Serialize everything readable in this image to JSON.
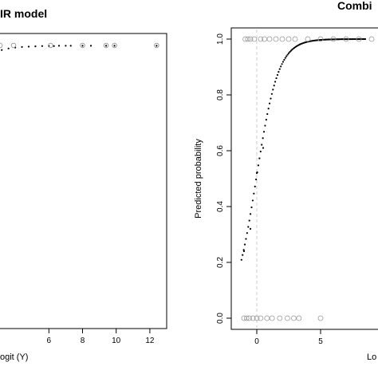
{
  "figure": {
    "panels": [
      {
        "title": "IR model",
        "xlabel": "ogit (Y)",
        "ylabel": "",
        "x_ticks": [
          "6",
          "8",
          "10",
          "12"
        ]
      },
      {
        "title": "Combi",
        "xlabel": "Lo",
        "ylabel": "Predicted probability",
        "x_ticks": [
          "0",
          "5",
          "10"
        ],
        "y_ticks": [
          "0.0",
          "0.2",
          "0.4",
          "0.6",
          "0.8",
          "1.0"
        ]
      }
    ]
  },
  "chart_data": [
    {
      "type": "scatter",
      "title": "IR model",
      "xlabel": "ogit (Y)",
      "ylabel": "",
      "xlim": [
        3.0,
        13.0
      ],
      "x_ticks": [
        6,
        8,
        10,
        12
      ],
      "grid": false,
      "series": [
        {
          "marker": "filled-dot",
          "color": "#000000",
          "x": [
            3.2,
            3.6,
            4.0,
            4.4,
            4.8,
            5.2,
            5.6,
            6.0,
            6.3,
            6.6,
            7.0,
            7.3,
            8.0,
            8.5,
            9.4,
            9.9,
            12.4
          ],
          "y": [
            0.985,
            0.99,
            0.993,
            0.995,
            0.996,
            0.997,
            0.998,
            0.998,
            0.998,
            0.999,
            0.999,
            0.999,
            0.999,
            0.999,
            0.999,
            0.999,
            0.999
          ]
        },
        {
          "marker": "open-circle",
          "color": "#888888",
          "x": [
            3.1,
            3.9,
            6.1,
            8.0,
            9.4,
            9.9,
            12.4
          ],
          "y": [
            1.0,
            1.0,
            1.0,
            1.0,
            1.0,
            1.0,
            1.0
          ]
        }
      ]
    },
    {
      "type": "scatter",
      "title": "Combi",
      "xlabel": "Lo",
      "ylabel": "Predicted probability",
      "xlim": [
        -2.0,
        10.5
      ],
      "ylim": [
        -0.04,
        1.04
      ],
      "x_ticks": [
        0,
        5,
        10
      ],
      "y_ticks": [
        0.0,
        0.2,
        0.4,
        0.6,
        0.8,
        1.0
      ],
      "grid": false,
      "reference_line": {
        "x": 0,
        "style": "dashed",
        "color": "#cccccc"
      },
      "series": [
        {
          "marker": "filled-dot",
          "color": "#000000",
          "curve": "logistic",
          "x_range": [
            -1.2,
            8.5
          ],
          "extra_points": [
            {
              "x": -1.0,
              "y": 0.24
            },
            {
              "x": -0.5,
              "y": 0.32
            },
            {
              "x": 0.0,
              "y": 0.52
            },
            {
              "x": 0.5,
              "y": 0.61
            }
          ]
        },
        {
          "marker": "open-circle",
          "color": "#999999",
          "x": [
            -0.9,
            -0.7,
            -0.5,
            -0.2,
            0.3,
            0.6,
            1.0,
            1.5,
            2.0,
            2.5,
            3.0,
            4.0,
            5.0,
            6.0,
            7.0,
            8.0,
            9.0
          ],
          "y": [
            1,
            1,
            1,
            1,
            1,
            1,
            1,
            1,
            1,
            1,
            1,
            1,
            1,
            1,
            1,
            1,
            1
          ]
        },
        {
          "marker": "open-circle",
          "color": "#999999",
          "x": [
            -1.0,
            -0.8,
            -0.6,
            -0.3,
            0.0,
            0.3,
            0.8,
            1.2,
            1.8,
            2.4,
            2.9,
            3.3,
            5.0
          ],
          "y": [
            0,
            0,
            0,
            0,
            0,
            0,
            0,
            0,
            0,
            0,
            0,
            0,
            0
          ]
        }
      ]
    }
  ]
}
